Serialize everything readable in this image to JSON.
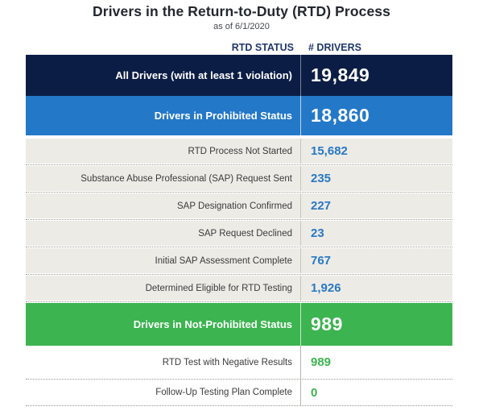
{
  "page": {
    "title": "Drivers in the Return-to-Duty (RTD) Process",
    "subtitle": "as of 6/1/2020"
  },
  "table": {
    "columns": {
      "status": "RTD STATUS",
      "drivers": "# DRIVERS"
    },
    "rows": [
      {
        "label": "All Drivers (with at least 1 violation)",
        "value": "19,849",
        "tier": "total-dark"
      },
      {
        "label": "Drivers in Prohibited Status",
        "value": "18,860",
        "tier": "total-blue"
      },
      {
        "label": "RTD Process Not Started",
        "value": "15,682",
        "tier": "sub"
      },
      {
        "label": "Substance Abuse Professional (SAP) Request Sent",
        "value": "235",
        "tier": "sub"
      },
      {
        "label": "SAP Designation Confirmed",
        "value": "227",
        "tier": "sub"
      },
      {
        "label": "SAP Request Declined",
        "value": "23",
        "tier": "sub"
      },
      {
        "label": "Initial SAP Assessment Complete",
        "value": "767",
        "tier": "sub"
      },
      {
        "label": "Determined Eligible for RTD Testing",
        "value": "1,926",
        "tier": "sub"
      },
      {
        "label": "Drivers in Not-Prohibited Status",
        "value": "989",
        "tier": "total-green"
      },
      {
        "label": "RTD Test with Negative Results",
        "value": "989",
        "tier": "sub-green"
      },
      {
        "label": "Follow-Up Testing Plan Complete",
        "value": "0",
        "tier": "sub-green"
      }
    ]
  },
  "colors": {
    "navy": "#0c1d45",
    "blue": "#2478c8",
    "green": "#3cb450",
    "gray-row": "#edebe6",
    "value-blue": "#2878c4",
    "value-green": "#3cb450",
    "header-text": "#21386b",
    "title-text": "#23272e",
    "label-text": "#3b3b3b"
  },
  "chart_data": {
    "type": "table",
    "title": "Drivers in the Return-to-Duty (RTD) Process",
    "subtitle": "as of 6/1/2020",
    "columns": [
      "RTD STATUS",
      "# DRIVERS"
    ],
    "rows": [
      {
        "status": "All Drivers (with at least 1 violation)",
        "drivers": 19849,
        "emphasis": "total-dark-navy"
      },
      {
        "status": "Drivers in Prohibited Status",
        "drivers": 18860,
        "emphasis": "total-blue"
      },
      {
        "status": "RTD Process Not Started",
        "drivers": 15682,
        "emphasis": "subcategory"
      },
      {
        "status": "Substance Abuse Professional (SAP) Request Sent",
        "drivers": 235,
        "emphasis": "subcategory"
      },
      {
        "status": "SAP Designation Confirmed",
        "drivers": 227,
        "emphasis": "subcategory"
      },
      {
        "status": "SAP Request Declined",
        "drivers": 23,
        "emphasis": "subcategory"
      },
      {
        "status": "Initial SAP Assessment Complete",
        "drivers": 767,
        "emphasis": "subcategory"
      },
      {
        "status": "Determined Eligible for RTD Testing",
        "drivers": 1926,
        "emphasis": "subcategory"
      },
      {
        "status": "Drivers in Not-Prohibited Status",
        "drivers": 989,
        "emphasis": "total-green"
      },
      {
        "status": "RTD Test with Negative Results",
        "drivers": 989,
        "emphasis": "subcategory-green"
      },
      {
        "status": "Follow-Up Testing Plan Complete",
        "drivers": 0,
        "emphasis": "subcategory-green"
      }
    ]
  }
}
